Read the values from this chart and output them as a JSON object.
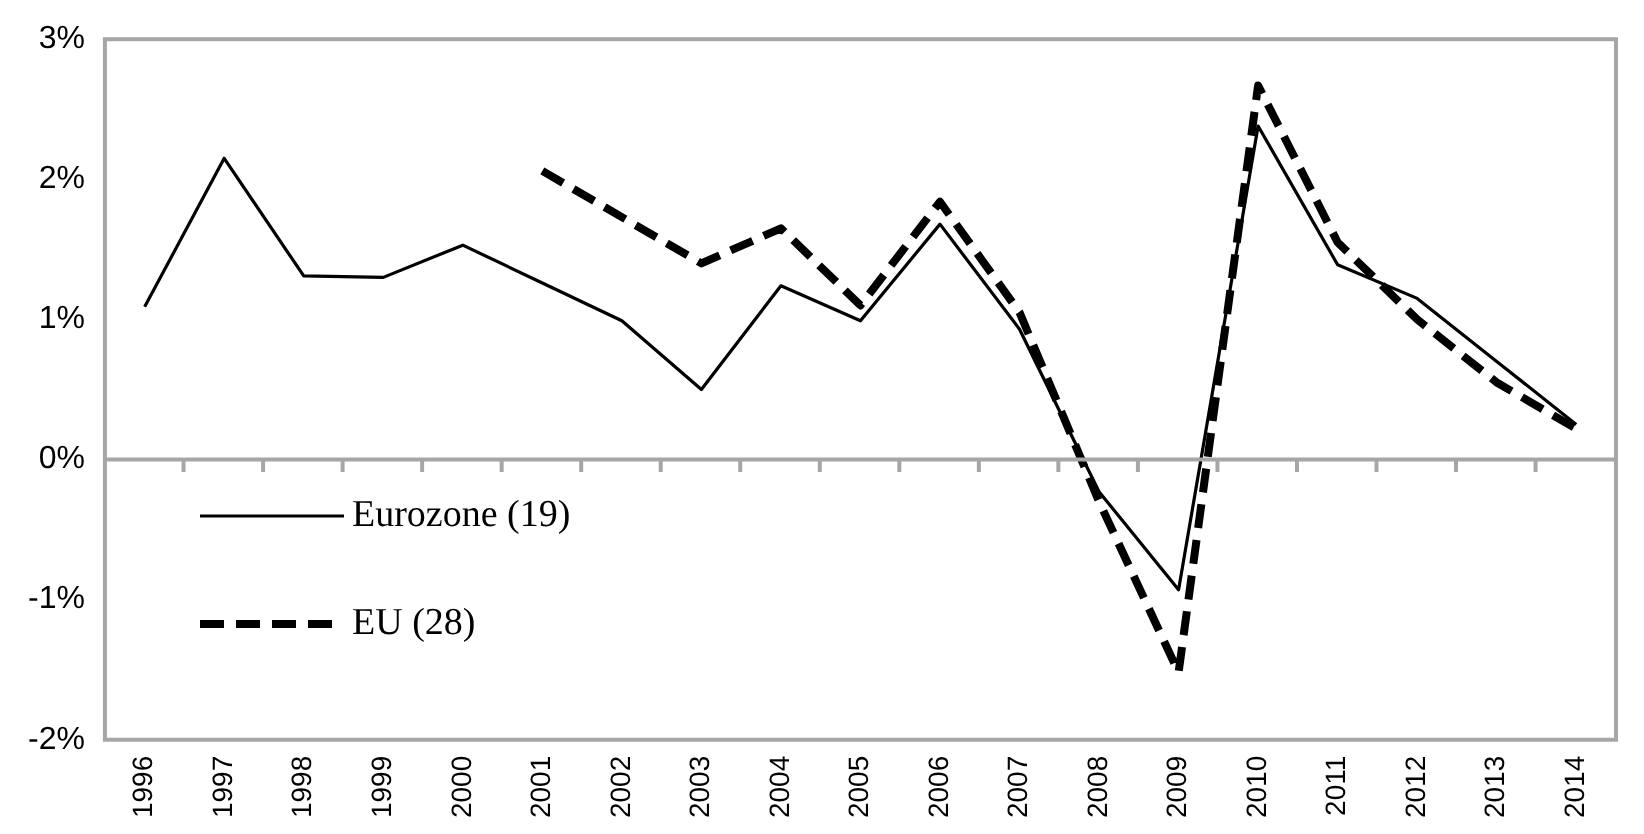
{
  "chart_data": {
    "type": "line",
    "categories": [
      "1996",
      "1997",
      "1998",
      "1999",
      "2000",
      "2001",
      "2002",
      "2003",
      "2004",
      "2005",
      "2006",
      "2007",
      "2008",
      "2009",
      "2010",
      "2011",
      "2012",
      "2013",
      "2014"
    ],
    "series": [
      {
        "name": "Eurozone (19)",
        "color": "#000000",
        "line_style": "solid",
        "values": [
          1.09,
          2.15,
          1.31,
          1.3,
          1.53,
          1.26,
          0.99,
          0.5,
          1.24,
          0.99,
          1.68,
          0.93,
          -0.23,
          -0.93,
          2.38,
          1.39,
          1.15,
          0.7,
          0.25
        ]
      },
      {
        "name": "EU (28)",
        "color": "#000000",
        "line_style": "dashed",
        "values": [
          null,
          null,
          null,
          null,
          null,
          2.06,
          1.73,
          1.4,
          1.65,
          1.1,
          1.84,
          1.05,
          -0.3,
          -1.52,
          2.67,
          1.55,
          1.0,
          0.55,
          0.22
        ]
      }
    ],
    "ylim": [
      -2,
      3
    ],
    "yticks": [
      {
        "value": -2,
        "label": "-2%"
      },
      {
        "value": -1,
        "label": "-1%"
      },
      {
        "value": 0,
        "label": "0%"
      },
      {
        "value": 1,
        "label": "1%"
      },
      {
        "value": 2,
        "label": "2%"
      },
      {
        "value": 3,
        "label": "3%"
      }
    ],
    "ref_lines": [
      {
        "axis": "y",
        "value": 0,
        "color": "#a6a6a6"
      }
    ],
    "grid": false,
    "legend": "left",
    "marker": "none"
  }
}
